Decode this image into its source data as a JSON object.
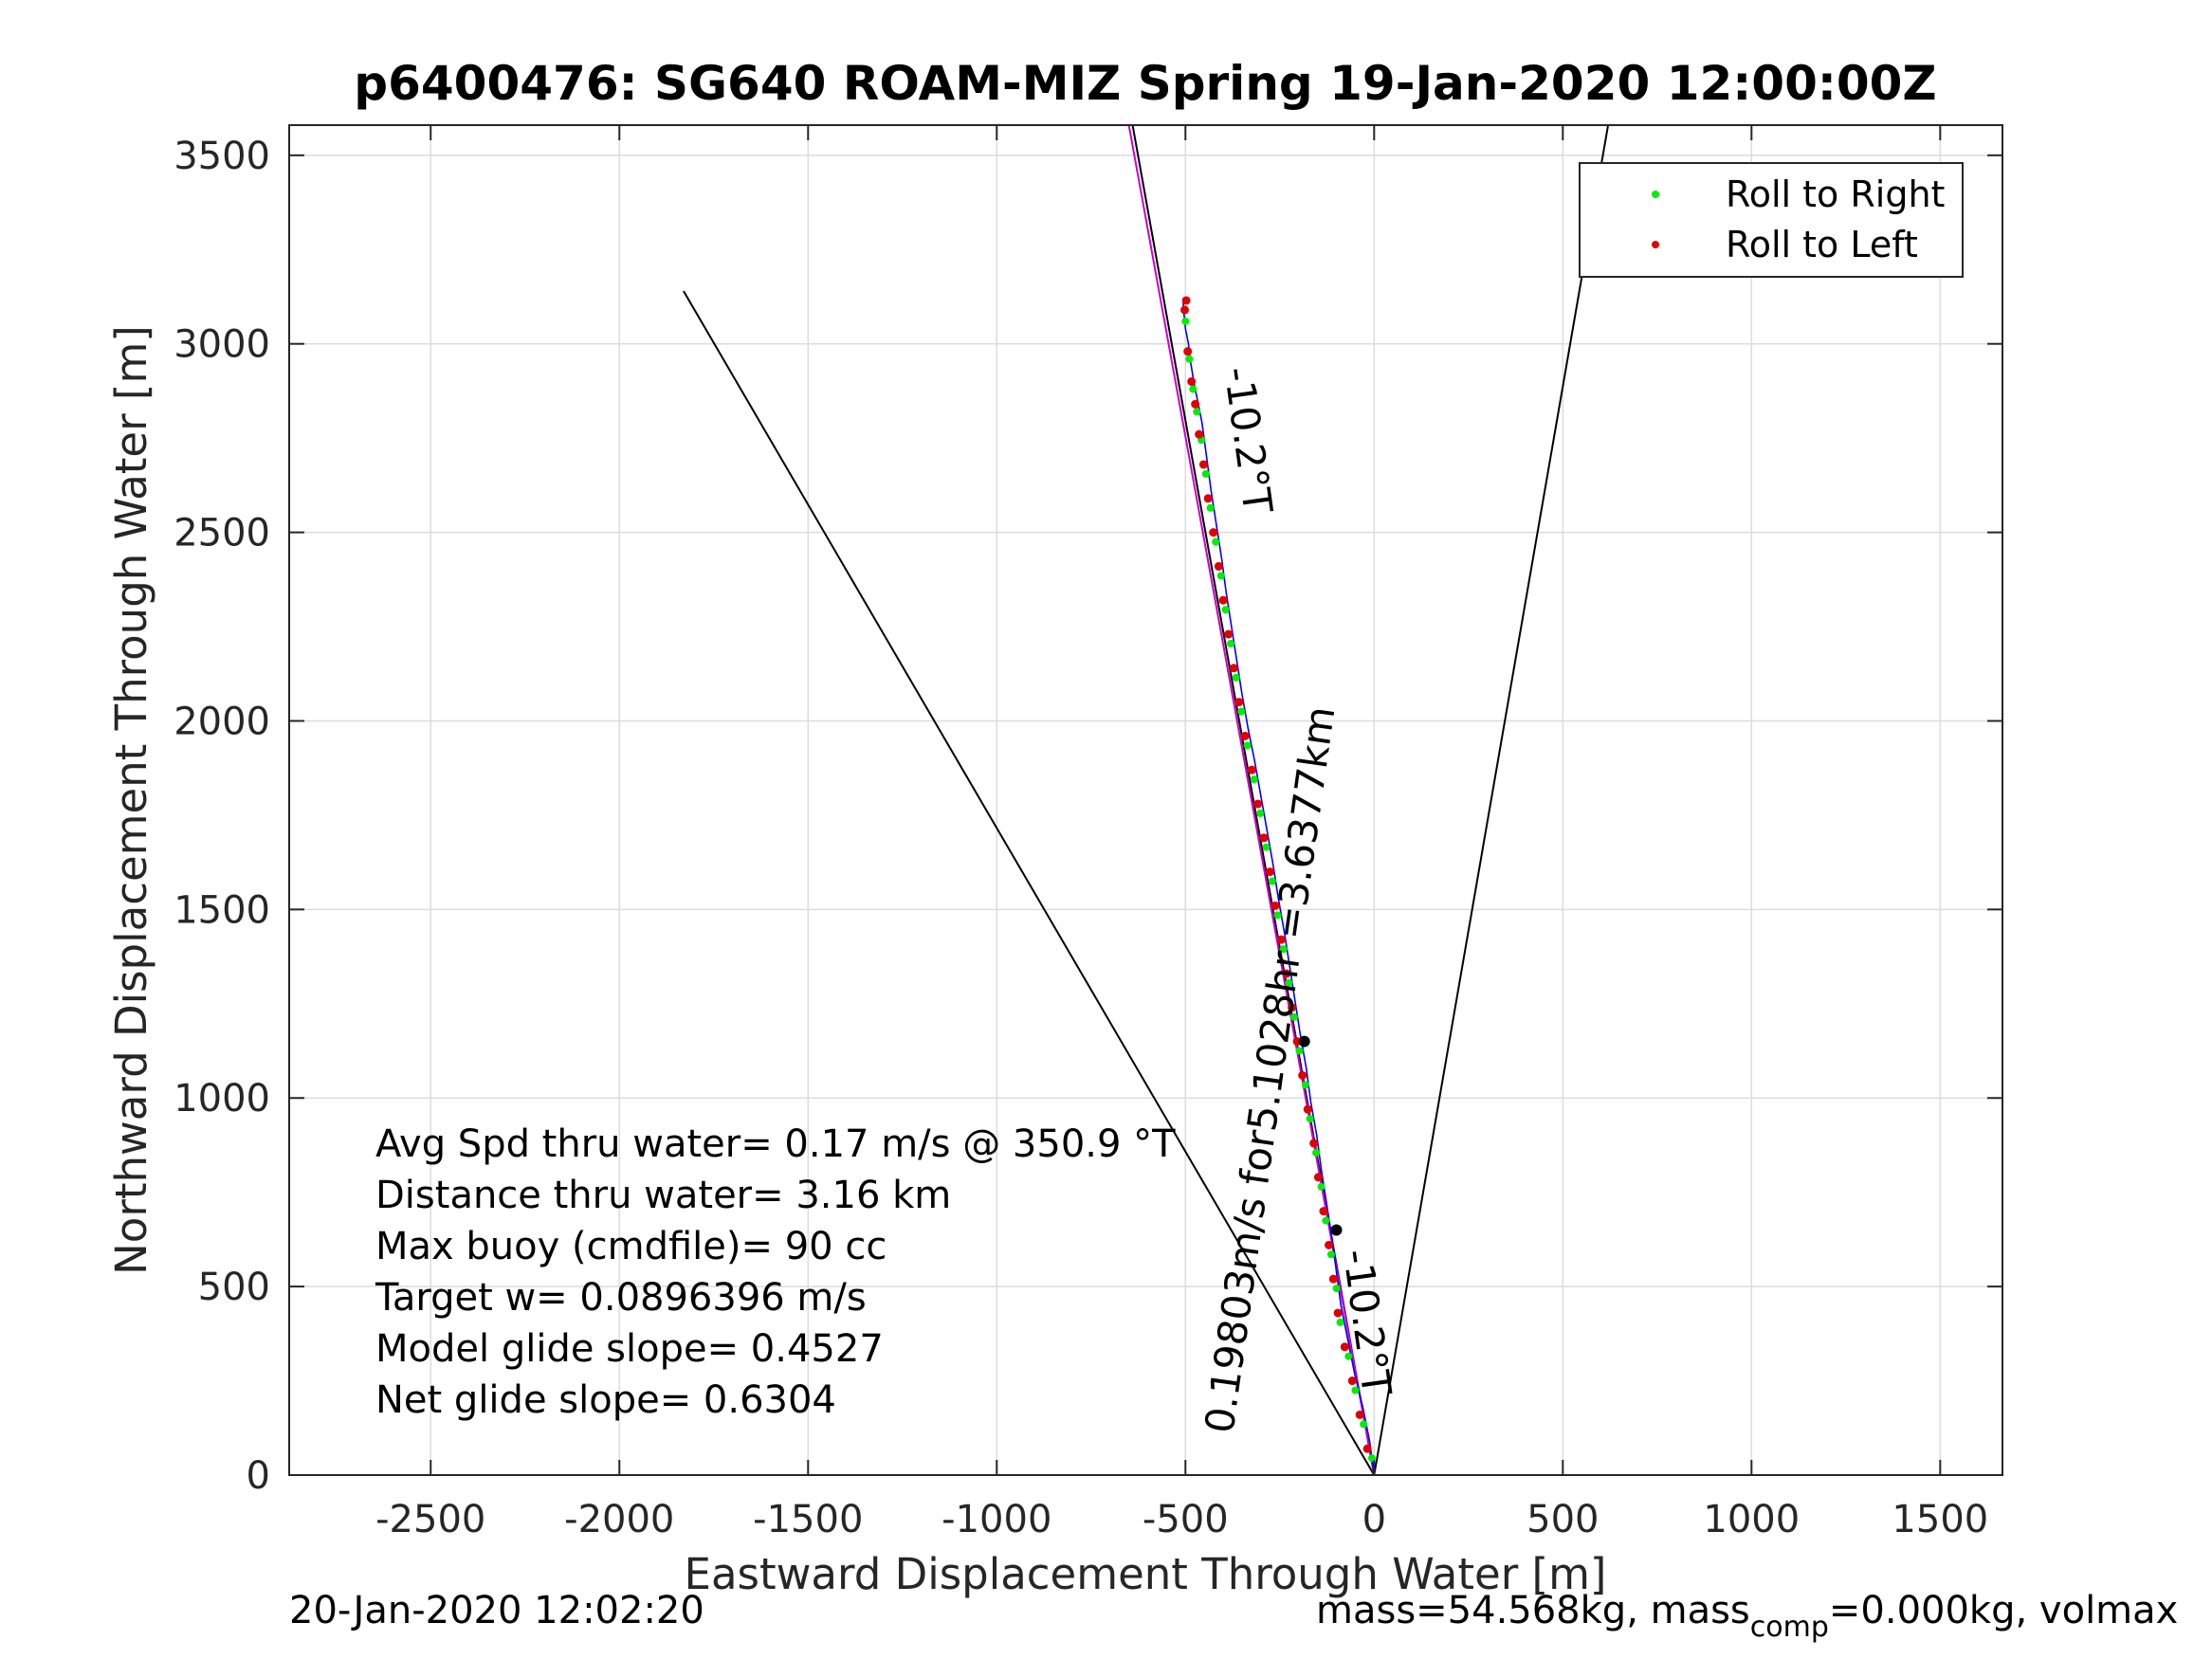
{
  "chart_data": {
    "type": "scatter",
    "title": "p6400476: SG640 ROAM-MIZ Spring 19-Jan-2020 12:00:00Z",
    "xlabel": "Eastward Displacement Through Water [m]",
    "ylabel": "Northward Displacement Through Water [m]",
    "xlim": [
      -2875,
      1665
    ],
    "ylim": [
      0,
      3580
    ],
    "xticks": [
      -2500,
      -2000,
      -1500,
      -1000,
      -500,
      0,
      500,
      1000,
      1500
    ],
    "yticks": [
      0,
      500,
      1000,
      1500,
      2000,
      2500,
      3000,
      3500
    ],
    "grid": true,
    "legend": {
      "position": "top-right",
      "entries": [
        {
          "label": "Roll to Right",
          "color": "#00ee00"
        },
        {
          "label": "Roll to Left",
          "color": "#e00000"
        }
      ]
    },
    "reference_lines": [
      {
        "name": "heading-line",
        "color": "#000000",
        "x": [
          0,
          -640
        ],
        "y": [
          0,
          3580
        ]
      },
      {
        "name": "bound-left",
        "color": "#000000",
        "x": [
          0,
          -1830
        ],
        "y": [
          0,
          3140
        ]
      },
      {
        "name": "bound-right",
        "color": "#000000",
        "x": [
          0,
          620
        ],
        "y": [
          0,
          3580
        ]
      },
      {
        "name": "magenta-line",
        "color": "#cc00cc",
        "x": [
          0,
          -650
        ],
        "y": [
          0,
          3580
        ]
      }
    ],
    "track": {
      "color": "#0000ff",
      "x": [
        0,
        -12,
        -30,
        -52,
        -70,
        -88,
        -100,
        -112,
        -126,
        -140,
        -152,
        -168,
        -180,
        -196,
        -210,
        -224,
        -238,
        -254,
        -268,
        -284,
        -300,
        -316,
        -334,
        -350,
        -364,
        -378,
        -392,
        -404,
        -418,
        -432,
        -444,
        -456,
        -468,
        -478,
        -486,
        -492,
        -500,
        -504,
        -506,
        -502
      ],
      "y": [
        0,
        90,
        180,
        270,
        360,
        450,
        540,
        630,
        720,
        810,
        900,
        990,
        1080,
        1170,
        1260,
        1350,
        1440,
        1530,
        1620,
        1710,
        1800,
        1890,
        1980,
        2070,
        2160,
        2250,
        2340,
        2430,
        2520,
        2610,
        2700,
        2790,
        2850,
        2900,
        2950,
        3000,
        3040,
        3080,
        3110,
        3115
      ]
    },
    "roll_right": {
      "x": [
        -6,
        -28,
        -50,
        -68,
        -90,
        -100,
        -114,
        -128,
        -140,
        -154,
        -170,
        -182,
        -198,
        -212,
        -226,
        -240,
        -256,
        -270,
        -286,
        -302,
        -318,
        -336,
        -352,
        -366,
        -380,
        -394,
        -406,
        -420,
        -434,
        -446,
        -458,
        -470,
        -480,
        -490,
        -500
      ],
      "y": [
        45,
        135,
        225,
        315,
        405,
        495,
        585,
        675,
        765,
        855,
        945,
        1035,
        1125,
        1215,
        1305,
        1395,
        1485,
        1575,
        1665,
        1755,
        1845,
        1935,
        2025,
        2115,
        2205,
        2295,
        2385,
        2475,
        2565,
        2655,
        2745,
        2820,
        2880,
        2960,
        3060
      ]
    },
    "roll_left": {
      "x": [
        -18,
        -38,
        -58,
        -78,
        -96,
        -108,
        -120,
        -134,
        -148,
        -160,
        -176,
        -190,
        -204,
        -218,
        -232,
        -246,
        -262,
        -276,
        -292,
        -308,
        -324,
        -342,
        -358,
        -372,
        -386,
        -400,
        -412,
        -426,
        -440,
        -452,
        -464,
        -474,
        -484,
        -494,
        -502,
        -498
      ],
      "y": [
        70,
        160,
        250,
        340,
        430,
        520,
        610,
        700,
        790,
        880,
        970,
        1060,
        1150,
        1240,
        1330,
        1420,
        1510,
        1600,
        1690,
        1780,
        1870,
        1960,
        2050,
        2140,
        2230,
        2320,
        2410,
        2500,
        2590,
        2680,
        2760,
        2840,
        2900,
        2980,
        3090,
        3115
      ]
    },
    "current_markers": {
      "color": "#000000",
      "x": [
        -100,
        -185
      ],
      "y": [
        650,
        1150
      ]
    },
    "annotations": [
      {
        "text": "-10.2°T",
        "x": -370,
        "y": 2740,
        "rotate": 82
      },
      {
        "text": "-10.2°T",
        "x": -55,
        "y": 400,
        "rotate": 82
      },
      {
        "text": "0.19803m/s for5.1028hr =3.6377km",
        "x": -240,
        "y": 1070,
        "rotate": -82
      }
    ],
    "stats": [
      "Avg Spd thru water=  0.17 m/s @ 350.9 °T",
      "Distance thru water=  3.16 km",
      "Max buoy (cmdfile)= 90 cc",
      "Target w= 0.0896396 m/s",
      "Model glide slope= 0.4527",
      "Net glide slope= 0.6304"
    ]
  },
  "footer": {
    "timestamp": "20-Jan-2020 12:02:20",
    "mass_prefix": "mass=54.568kg, mass",
    "mass_sub": "comp",
    "mass_suffix": "=0.000kg, volmax"
  }
}
